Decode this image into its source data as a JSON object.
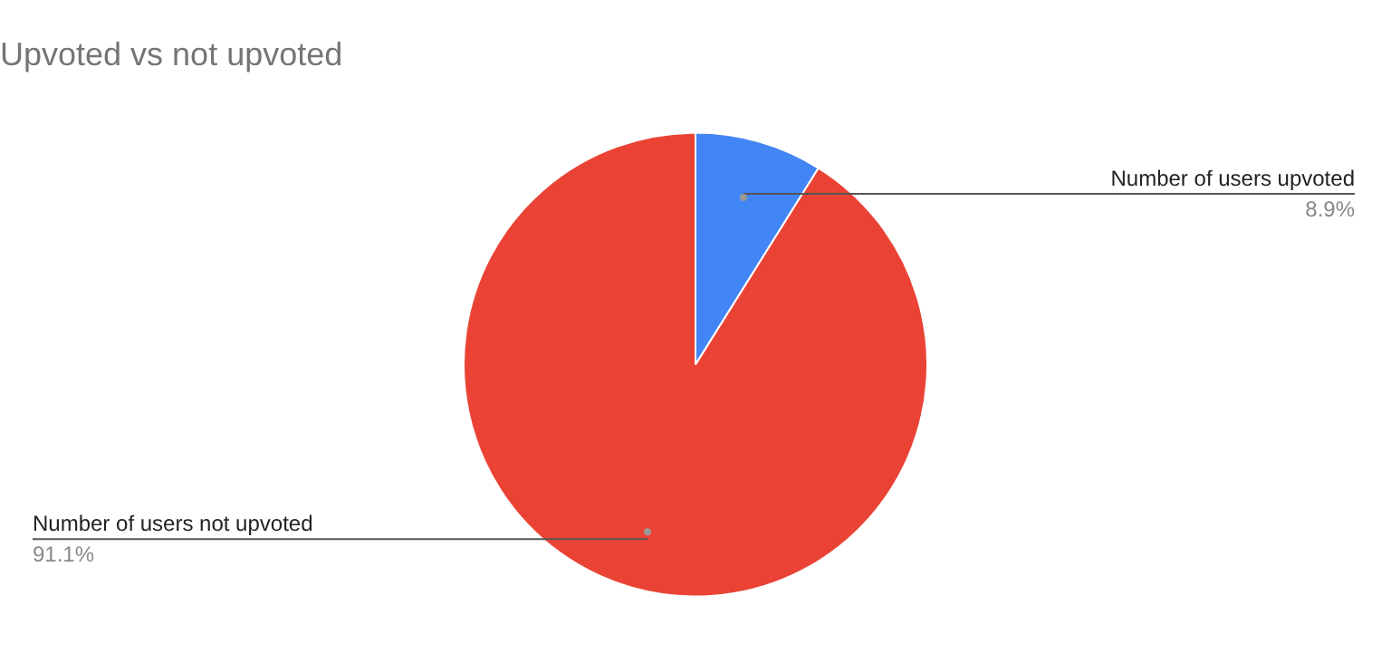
{
  "chart_data": {
    "type": "pie",
    "title": "Upvoted vs not upvoted",
    "categories": [
      "Number of users upvoted",
      "Number of users not upvoted"
    ],
    "values": [
      8.9,
      91.1
    ],
    "value_labels": [
      "8.9%",
      "91.1%"
    ],
    "colors": [
      "#4285f4",
      "#ea4335"
    ],
    "legend": false
  }
}
